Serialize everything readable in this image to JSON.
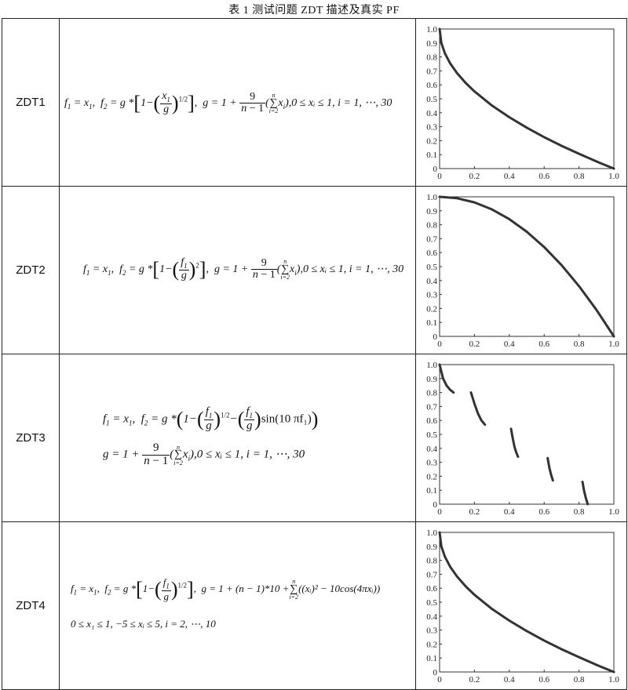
{
  "caption": "表 1 测试问题 ZDT 描述及真实 PF",
  "rows": [
    {
      "name": "ZDT1"
    },
    {
      "name": "ZDT2"
    },
    {
      "name": "ZDT3"
    },
    {
      "name": "ZDT4"
    }
  ],
  "formulas": {
    "common_f1": "f₁ = x₁,",
    "zdt1_tail": "0 ≤ xᵢ ≤ 1, i = 1, ⋯, 30",
    "zdt2_tail": "0 ≤ xᵢ ≤ 1, i = 1, ⋯, 30",
    "zdt3_line2_tail": "0 ≤ xᵢ ≤ 1, i = 1, ⋯, 30",
    "zdt4_tail": "0 ≤ x₁ ≤ 1, −5 ≤ xᵢ ≤ 5, i = 2, ⋯, 10",
    "zdt4_g": "g = 1 + (n − 1)*10 +",
    "zdt4_g_tail": "((xᵢ)² − 10cos(4πxᵢ))",
    "zdt3_sin": "sin(10 πf₁)"
  },
  "chart_data": [
    {
      "type": "scatter",
      "name": "ZDT1 true PF",
      "x_ticks": [
        "0",
        "0.2",
        "0.4",
        "0.6",
        "0.8",
        "1.0"
      ],
      "y_ticks": [
        "0",
        "0.1",
        "0.2",
        "0.3",
        "0.4",
        "0.5",
        "0.6",
        "0.7",
        "0.8",
        "0.9",
        "1.0"
      ],
      "xlim": [
        0,
        1
      ],
      "ylim": [
        0,
        1
      ],
      "x": [
        0,
        0.01,
        0.03,
        0.06,
        0.1,
        0.15,
        0.2,
        0.3,
        0.4,
        0.5,
        0.6,
        0.7,
        0.8,
        0.9,
        1.0
      ],
      "y": [
        1.0,
        0.9,
        0.827,
        0.755,
        0.684,
        0.613,
        0.553,
        0.452,
        0.368,
        0.293,
        0.225,
        0.163,
        0.106,
        0.051,
        0.0
      ],
      "color": "#333333"
    },
    {
      "type": "scatter",
      "name": "ZDT2 true PF",
      "x_ticks": [
        "0",
        "0.2",
        "0.4",
        "0.6",
        "0.8",
        "1.0"
      ],
      "y_ticks": [
        "0",
        "0.1",
        "0.2",
        "0.3",
        "0.4",
        "0.5",
        "0.6",
        "0.7",
        "0.8",
        "0.9",
        "1.0"
      ],
      "xlim": [
        0,
        1
      ],
      "ylim": [
        0,
        1
      ],
      "x": [
        0,
        0.1,
        0.2,
        0.3,
        0.4,
        0.5,
        0.6,
        0.7,
        0.8,
        0.9,
        1.0
      ],
      "y": [
        1.0,
        0.99,
        0.96,
        0.91,
        0.84,
        0.75,
        0.64,
        0.51,
        0.36,
        0.19,
        0.0
      ],
      "color": "#333333"
    },
    {
      "type": "scatter",
      "name": "ZDT3 true PF",
      "x_ticks": [
        "0",
        "0.2",
        "0.4",
        "0.6",
        "0.8",
        "1.0"
      ],
      "y_ticks": [
        "0",
        "0.1",
        "0.2",
        "0.3",
        "0.4",
        "0.5",
        "0.6",
        "0.7",
        "0.8",
        "0.9",
        "1.0"
      ],
      "xlim": [
        0,
        1
      ],
      "ylim": [
        0,
        1
      ],
      "segments": [
        {
          "x": [
            0.0,
            0.02,
            0.04,
            0.06,
            0.08
          ],
          "y": [
            1.0,
            0.9,
            0.85,
            0.82,
            0.8
          ]
        },
        {
          "x": [
            0.18,
            0.2,
            0.22,
            0.24,
            0.26
          ],
          "y": [
            0.8,
            0.72,
            0.65,
            0.6,
            0.57
          ]
        },
        {
          "x": [
            0.41,
            0.42,
            0.43,
            0.44,
            0.45
          ],
          "y": [
            0.54,
            0.47,
            0.41,
            0.37,
            0.34
          ]
        },
        {
          "x": [
            0.62,
            0.63,
            0.64,
            0.65
          ],
          "y": [
            0.33,
            0.26,
            0.21,
            0.17
          ]
        },
        {
          "x": [
            0.82,
            0.83,
            0.84,
            0.85
          ],
          "y": [
            0.16,
            0.09,
            0.04,
            0.0
          ]
        }
      ],
      "color": "#333333"
    },
    {
      "type": "scatter",
      "name": "ZDT4 true PF",
      "x_ticks": [
        "0",
        "0.2",
        "0.4",
        "0.6",
        "0.8",
        "1.0"
      ],
      "y_ticks": [
        "0",
        "0.1",
        "0.2",
        "0.3",
        "0.4",
        "0.5",
        "0.6",
        "0.7",
        "0.8",
        "0.9",
        "1.0"
      ],
      "xlim": [
        0,
        1
      ],
      "ylim": [
        0,
        1
      ],
      "x": [
        0,
        0.01,
        0.03,
        0.06,
        0.1,
        0.15,
        0.2,
        0.3,
        0.4,
        0.5,
        0.6,
        0.7,
        0.8,
        0.9,
        1.0
      ],
      "y": [
        1.0,
        0.9,
        0.827,
        0.755,
        0.684,
        0.613,
        0.553,
        0.452,
        0.368,
        0.293,
        0.225,
        0.163,
        0.106,
        0.051,
        0.0
      ],
      "color": "#333333"
    }
  ]
}
